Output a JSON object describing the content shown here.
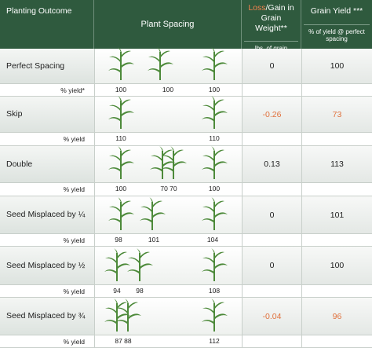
{
  "header": {
    "outcome": "Planting Outcome",
    "spacing": "Plant Spacing",
    "loss_word": "Loss",
    "gain_text": "/Gain in Grain Weight**",
    "loss_unit": "lbs. of grain",
    "yield_title": "Grain Yield ***",
    "yield_unit": "% of yield @ perfect spacing"
  },
  "colors": {
    "header_bg": "#2f5a3e",
    "loss_red": "#e0703b",
    "plant_green": "#4d8a3a"
  },
  "rows": [
    {
      "label": "Perfect Spacing",
      "yield_label": "% yield*",
      "loss": "0",
      "loss_negative": false,
      "grain_yield": "100",
      "yield_negative": false,
      "numbers": [
        "100",
        "100",
        "100"
      ]
    },
    {
      "label": "Skip",
      "yield_label": "% yield",
      "loss": "-0.26",
      "loss_negative": true,
      "grain_yield": "73",
      "yield_negative": true,
      "numbers": [
        "110",
        "110"
      ]
    },
    {
      "label": "Double",
      "yield_label": "% yield",
      "loss": "0.13",
      "loss_negative": false,
      "grain_yield": "113",
      "yield_negative": false,
      "numbers": [
        "100",
        "70 70",
        "100"
      ]
    },
    {
      "label": "Seed Misplaced by ¼",
      "yield_label": "% yield",
      "loss": "0",
      "loss_negative": false,
      "grain_yield": "101",
      "yield_negative": false,
      "numbers": [
        "98",
        "101",
        "104"
      ]
    },
    {
      "label": "Seed Misplaced by ½",
      "yield_label": "% yield",
      "loss": "0",
      "loss_negative": false,
      "grain_yield": "100",
      "yield_negative": false,
      "numbers": [
        "94",
        "98",
        "108"
      ]
    },
    {
      "label": "Seed Misplaced by ¾",
      "yield_label": "% yield",
      "loss": "-0.04",
      "loss_negative": true,
      "grain_yield": "96",
      "yield_negative": true,
      "numbers": [
        "87 88",
        "112"
      ]
    }
  ]
}
